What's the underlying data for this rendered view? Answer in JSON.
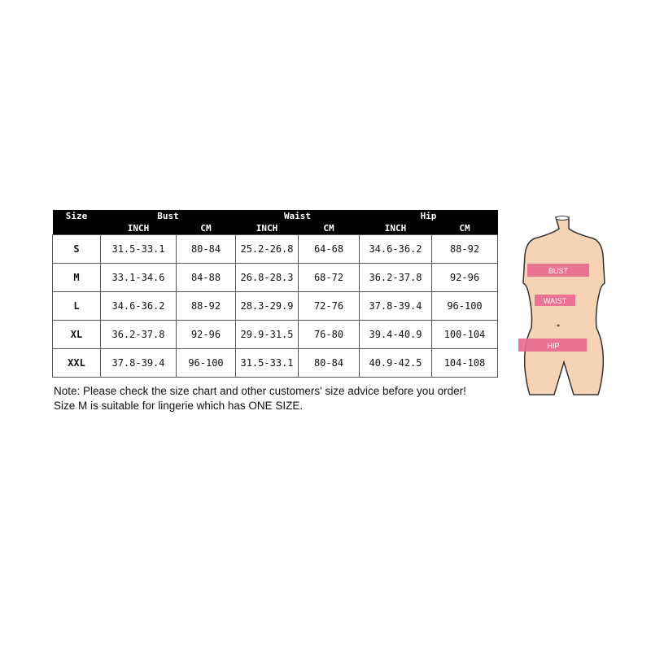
{
  "table": {
    "headers": {
      "size": "Size",
      "bust": "Bust",
      "waist": "Waist",
      "hip": "Hip",
      "inch": "INCH",
      "cm": "CM"
    },
    "rows": [
      [
        "S",
        "31.5-33.1",
        "80-84",
        "25.2-26.8",
        "64-68",
        "34.6-36.2",
        "88-92"
      ],
      [
        "M",
        "33.1-34.6",
        "84-88",
        "26.8-28.3",
        "68-72",
        "36.2-37.8",
        "92-96"
      ],
      [
        "L",
        "34.6-36.2",
        "88-92",
        "28.3-29.9",
        "72-76",
        "37.8-39.4",
        "96-100"
      ],
      [
        "XL",
        "36.2-37.8",
        "92-96",
        "29.9-31.5",
        "76-80",
        "39.4-40.9",
        "100-104"
      ],
      [
        "XXL",
        "37.8-39.4",
        "96-100",
        "31.5-33.1",
        "80-84",
        "40.9-42.5",
        "104-108"
      ]
    ]
  },
  "notes": [
    "Note: Please check the size chart and other customers' size advice before you order!",
    "Size M is suitable for lingerie which has ONE SIZE."
  ],
  "figure": {
    "labels": [
      "BUST",
      "WAIST",
      "HIP"
    ],
    "band_color": "#e8688f",
    "skin_color": "#f7d3b5"
  }
}
